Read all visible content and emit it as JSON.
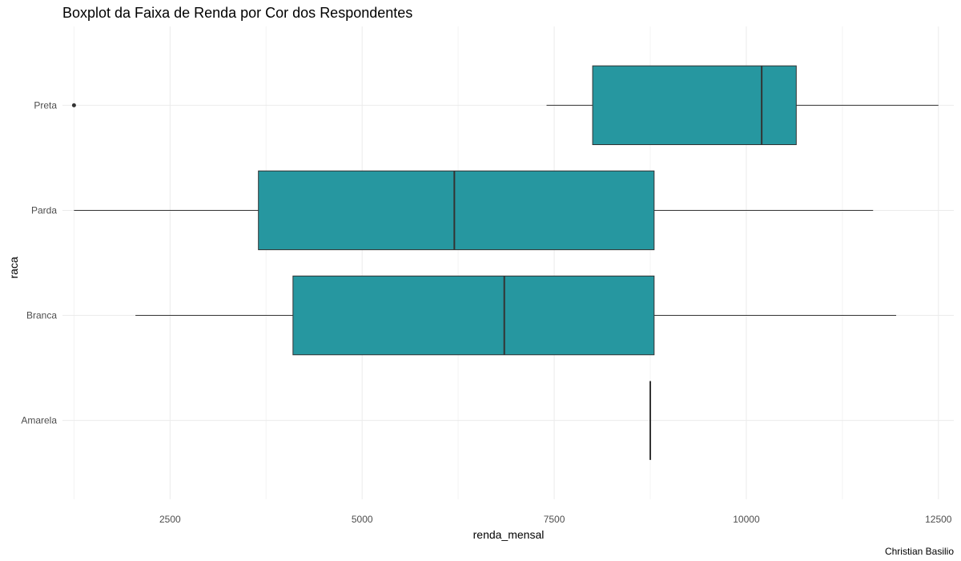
{
  "chart_data": {
    "type": "boxplot",
    "title": "Boxplot da Faixa de Renda por Cor dos Respondentes",
    "xlabel": "renda_mensal",
    "ylabel": "raca",
    "caption": "Christian Basilio",
    "xlim": [
      1100,
      12700
    ],
    "xticks": [
      2500,
      5000,
      7500,
      10000,
      12500
    ],
    "categories": [
      "Amarela",
      "Branca",
      "Parda",
      "Preta"
    ],
    "series": [
      {
        "category": "Amarela",
        "whisker_low": 8750,
        "q1": 8750,
        "median": 8750,
        "q3": 8750,
        "whisker_high": 8750,
        "outliers": []
      },
      {
        "category": "Branca",
        "whisker_low": 2050,
        "q1": 4100,
        "median": 6850,
        "q3": 8800,
        "whisker_high": 11950,
        "outliers": []
      },
      {
        "category": "Parda",
        "whisker_low": 1250,
        "q1": 3650,
        "median": 6200,
        "q3": 8800,
        "whisker_high": 11650,
        "outliers": []
      },
      {
        "category": "Preta",
        "whisker_low": 7400,
        "q1": 8000,
        "median": 10200,
        "q3": 10650,
        "whisker_high": 12500,
        "outliers": [
          1250
        ]
      }
    ],
    "colors": {
      "fill": "#2697a0",
      "stroke": "#333333",
      "grid": "#ebebeb",
      "tick_text": "#4d4d4d",
      "title_text": "#000000"
    },
    "grid": true,
    "legend": "none"
  }
}
